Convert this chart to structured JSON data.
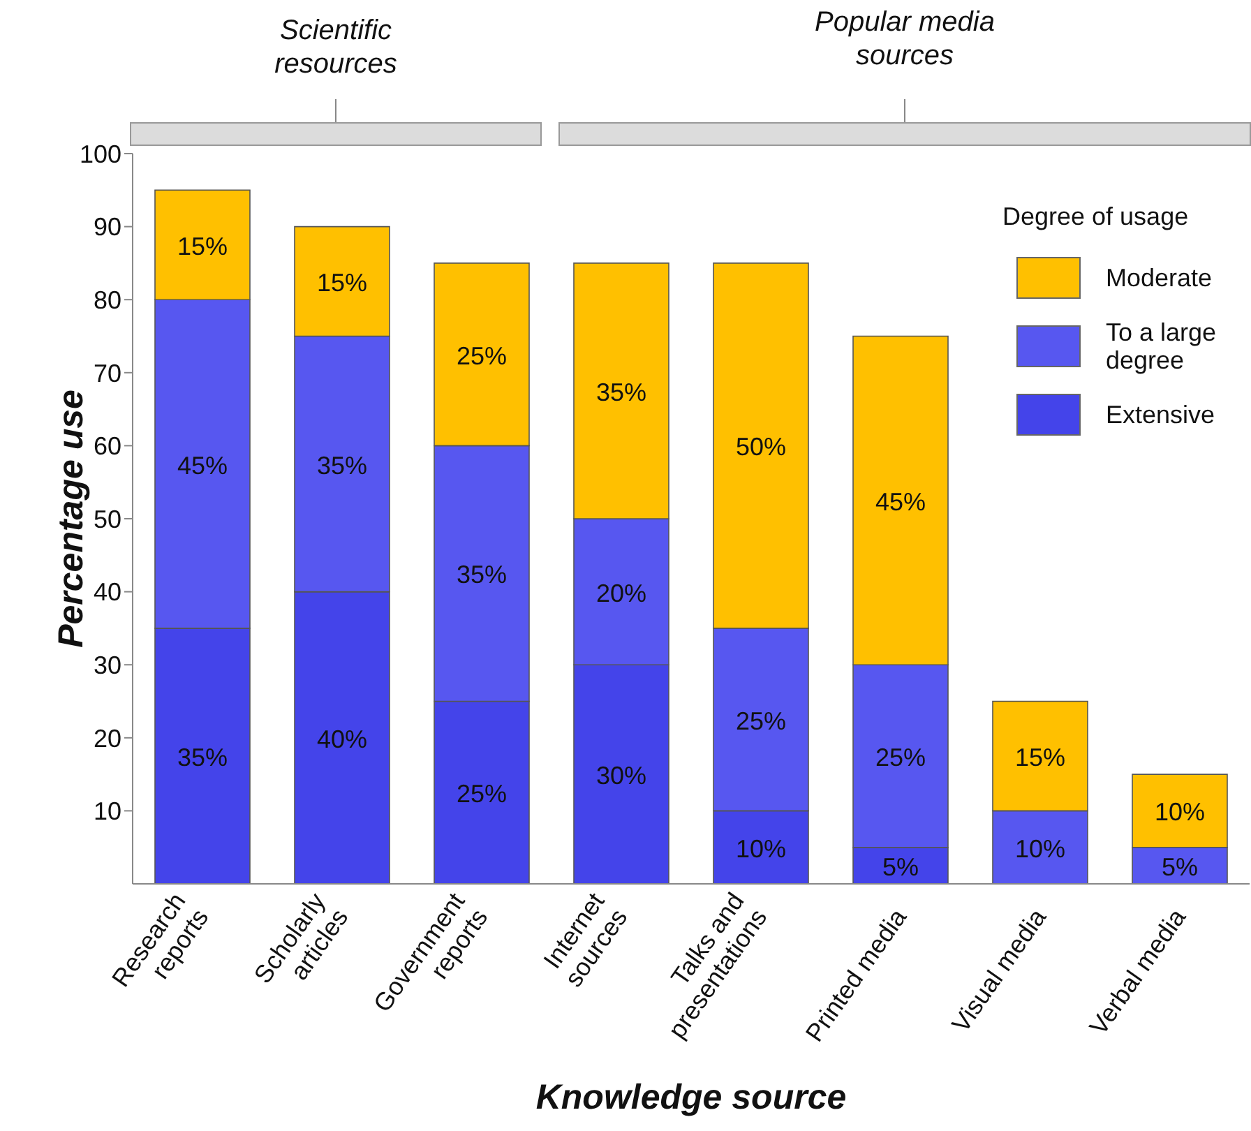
{
  "chart_data": {
    "type": "bar",
    "stacked": true,
    "xlabel": "Knowledge source",
    "ylabel": "Percentage use",
    "legend_title": "Degree of usage",
    "legend": "top right",
    "categories": [
      "Research reports",
      "Scholarly articles",
      "Government reports",
      "Internet sources",
      "Talks and presentations",
      "Printed media",
      "Visual media",
      "Verbal media"
    ],
    "ylim": [
      0,
      100
    ],
    "yticks": [
      10,
      20,
      30,
      40,
      50,
      60,
      70,
      80,
      90,
      100
    ],
    "annotations": [
      "Scientific resources",
      "Popular media sources"
    ],
    "series": [
      {
        "name": "Extensive",
        "color": "#4444ea",
        "values": [
          35,
          40,
          25,
          30,
          10,
          5,
          0,
          0
        ],
        "value_labels": [
          "35%",
          "40%",
          "25%",
          "30%",
          "10%",
          "5%",
          null,
          null
        ]
      },
      {
        "name": "To a large degree",
        "color": "#5757f0",
        "values": [
          45,
          35,
          35,
          20,
          25,
          25,
          10,
          5
        ],
        "value_labels": [
          "45%",
          "35%",
          "35%",
          "20%",
          "25%",
          "25%",
          "10%",
          "5%"
        ]
      },
      {
        "name": "Moderate",
        "color": "#ffc000",
        "values": [
          15,
          15,
          25,
          35,
          50,
          45,
          15,
          10
        ],
        "value_labels": [
          "15%",
          "15%",
          "25%",
          "35%",
          "50%",
          "45%",
          "15%",
          "10%"
        ]
      }
    ]
  }
}
